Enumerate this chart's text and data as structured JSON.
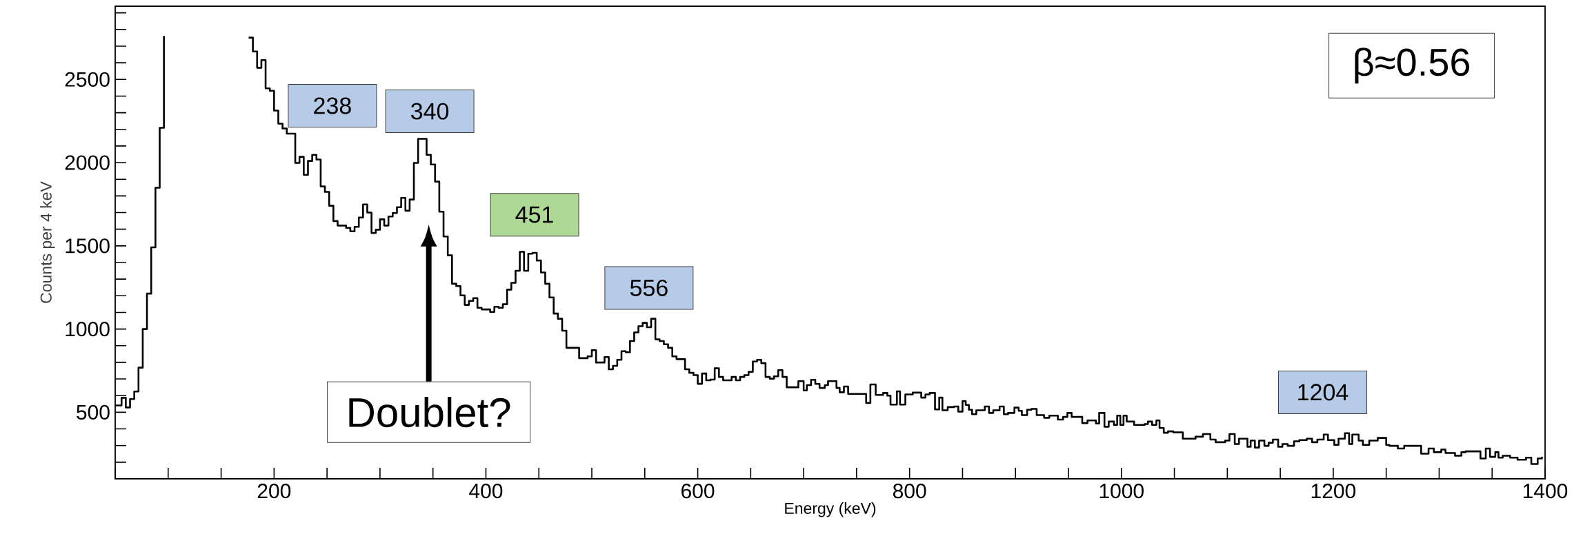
{
  "chart_data": {
    "type": "step",
    "xlabel": "Energy (keV)",
    "ylabel": "Counts per 4 keV",
    "xlim": [
      50,
      1400
    ],
    "ylim": [
      100,
      2940
    ],
    "xticks": [
      {
        "value": 50,
        "label": null
      },
      {
        "value": 100,
        "label": null
      },
      {
        "value": 150,
        "label": null
      },
      200,
      {
        "value": 250,
        "label": null
      },
      {
        "value": 300,
        "label": null
      },
      {
        "value": 350,
        "label": null
      },
      400,
      {
        "value": 450,
        "label": null
      },
      {
        "value": 500,
        "label": null
      },
      {
        "value": 550,
        "label": null
      },
      600,
      {
        "value": 650,
        "label": null
      },
      {
        "value": 700,
        "label": null
      },
      {
        "value": 750,
        "label": null
      },
      800,
      {
        "value": 850,
        "label": null
      },
      {
        "value": 900,
        "label": null
      },
      {
        "value": 950,
        "label": null
      },
      1000,
      {
        "value": 1050,
        "label": null
      },
      {
        "value": 1100,
        "label": null
      },
      {
        "value": 1150,
        "label": null
      },
      1200,
      {
        "value": 1250,
        "label": null
      },
      {
        "value": 1300,
        "label": null
      },
      {
        "value": 1350,
        "label": null
      },
      1400
    ],
    "yticks": [
      {
        "value": 200,
        "label": null
      },
      {
        "value": 300,
        "label": null
      },
      {
        "value": 400,
        "label": null
      },
      500,
      {
        "value": 600,
        "label": null
      },
      {
        "value": 700,
        "label": null
      },
      {
        "value": 800,
        "label": null
      },
      {
        "value": 900,
        "label": null
      },
      1000,
      {
        "value": 1100,
        "label": null
      },
      {
        "value": 1200,
        "label": null
      },
      {
        "value": 1300,
        "label": null
      },
      {
        "value": 1400,
        "label": null
      },
      1500,
      {
        "value": 1600,
        "label": null
      },
      {
        "value": 1700,
        "label": null
      },
      {
        "value": 1800,
        "label": null
      },
      {
        "value": 1900,
        "label": null
      },
      2000,
      {
        "value": 2100,
        "label": null
      },
      {
        "value": 2200,
        "label": null
      },
      {
        "value": 2300,
        "label": null
      },
      {
        "value": 2400,
        "label": null
      },
      2500,
      {
        "value": 2600,
        "label": null
      },
      {
        "value": 2700,
        "label": null
      },
      {
        "value": 2800,
        "label": null
      },
      {
        "value": 2900,
        "label": null
      }
    ],
    "series": [
      {
        "color": "#000000",
        "x": [
          50,
          56,
          60,
          64,
          68,
          72,
          76,
          80,
          84,
          88,
          92,
          96,
          100,
          176,
          180,
          184,
          188,
          192,
          196,
          200,
          204,
          208,
          212,
          220,
          224,
          228,
          232,
          236,
          240,
          244,
          248,
          252,
          256,
          260,
          268,
          272,
          276,
          280,
          284,
          288,
          292,
          296,
          300,
          304,
          308,
          312,
          316,
          320,
          324,
          328,
          332,
          336,
          344,
          348,
          352,
          356,
          360,
          364,
          368,
          372,
          376,
          380,
          384,
          388,
          392,
          396,
          404,
          408,
          412,
          416,
          420,
          424,
          428,
          432,
          436,
          440,
          444,
          448,
          452,
          456,
          460,
          464,
          468,
          472,
          476,
          488,
          496,
          500,
          504,
          512,
          516,
          520,
          524,
          528,
          532,
          536,
          540,
          544,
          548,
          552,
          556,
          560,
          564,
          568,
          572,
          576,
          580,
          588,
          592,
          596,
          600,
          604,
          608,
          612,
          616,
          620,
          624,
          632,
          636,
          640,
          644,
          648,
          652,
          656,
          660,
          664,
          668,
          672,
          676,
          680,
          684,
          695,
          700,
          703,
          707,
          711,
          715,
          720,
          723,
          731,
          734,
          738,
          742,
          759,
          763,
          768,
          775,
          779,
          782,
          788,
          791,
          796,
          803,
          811,
          815,
          819,
          824,
          828,
          831,
          836,
          842,
          846,
          850,
          853,
          856,
          859,
          863,
          871,
          875,
          879,
          885,
          889,
          893,
          899,
          903,
          906,
          911,
          915,
          920,
          927,
          932,
          940,
          945,
          949,
          953,
          963,
          968,
          976,
          979,
          984,
          988,
          993,
          996,
          999,
          1002,
          1005,
          1012,
          1022,
          1025,
          1029,
          1033,
          1036,
          1040,
          1044,
          1049,
          1058,
          1070,
          1077,
          1084,
          1089,
          1098,
          1102,
          1107,
          1111,
          1119,
          1122,
          1126,
          1130,
          1135,
          1139,
          1143,
          1148,
          1152,
          1157,
          1163,
          1168,
          1175,
          1180,
          1185,
          1191,
          1195,
          1201,
          1205,
          1211,
          1215,
          1218,
          1224,
          1228,
          1234,
          1242,
          1250,
          1253,
          1261,
          1267,
          1283,
          1290,
          1295,
          1302,
          1306,
          1315,
          1321,
          1325,
          1339,
          1344,
          1348,
          1353,
          1356,
          1360,
          1367,
          1374,
          1382,
          1387,
          1393,
          1397
        ],
        "values": [
          541,
          587,
          529,
          579,
          625,
          768,
          1000,
          1213,
          1491,
          1849,
          2209,
          2761,
          null,
          2751,
          2668,
          2570,
          2616,
          2446,
          2432,
          2313,
          2234,
          2205,
          2174,
          1998,
          2035,
          1927,
          2010,
          2047,
          2019,
          1857,
          1824,
          1741,
          1649,
          1622,
          1608,
          1587,
          1614,
          1670,
          1749,
          1700,
          1577,
          1597,
          1659,
          1622,
          1676,
          1697,
          1732,
          1788,
          1711,
          1778,
          1998,
          2143,
          2047,
          1989,
          1886,
          1705,
          1556,
          1443,
          1272,
          1258,
          1202,
          1145,
          1169,
          1186,
          1128,
          1118,
          1103,
          1134,
          1128,
          1149,
          1237,
          1278,
          1350,
          1464,
          1350,
          1453,
          1458,
          1412,
          1340,
          1272,
          1190,
          1093,
          1062,
          990,
          887,
          825,
          836,
          873,
          799,
          832,
          758,
          779,
          815,
          867,
          861,
          928,
          980,
          1017,
          1037,
          1011,
          1062,
          938,
          928,
          908,
          887,
          836,
          819,
          758,
          737,
          723,
          671,
          733,
          692,
          696,
          764,
          712,
          692,
          712,
          692,
          712,
          723,
          743,
          805,
          815,
          795,
          712,
          702,
          716,
          753,
          712,
          650,
          687,
          631,
          663,
          695,
          670,
          646,
          663,
          687,
          646,
          620,
          655,
          610,
          556,
          667,
          604,
          616,
          600,
          546,
          626,
          546,
          607,
          618,
          588,
          607,
          616,
          517,
          588,
          512,
          531,
          535,
          504,
          567,
          544,
          515,
          488,
          512,
          535,
          496,
          512,
          535,
          488,
          496,
          528,
          509,
          483,
          515,
          520,
          483,
          467,
          480,
          456,
          472,
          496,
          472,
          435,
          451,
          432,
          496,
          413,
          444,
          424,
          480,
          424,
          480,
          444,
          424,
          429,
          444,
          424,
          451,
          405,
          377,
          385,
          379,
          341,
          353,
          369,
          336,
          320,
          330,
          369,
          309,
          341,
          293,
          330,
          288,
          330,
          298,
          317,
          336,
          293,
          309,
          298,
          325,
          333,
          341,
          320,
          336,
          366,
          333,
          304,
          341,
          374,
          309,
          366,
          330,
          304,
          330,
          346,
          304,
          298,
          282,
          298,
          251,
          282,
          260,
          276,
          255,
          239,
          260,
          265,
          222,
          282,
          232,
          260,
          227,
          239,
          227,
          215,
          227,
          189,
          222,
          232
        ]
      }
    ],
    "annotations": [
      "238",
      "340",
      "451",
      "556",
      "1204",
      "Doublet?",
      "β≈0.56"
    ]
  }
}
